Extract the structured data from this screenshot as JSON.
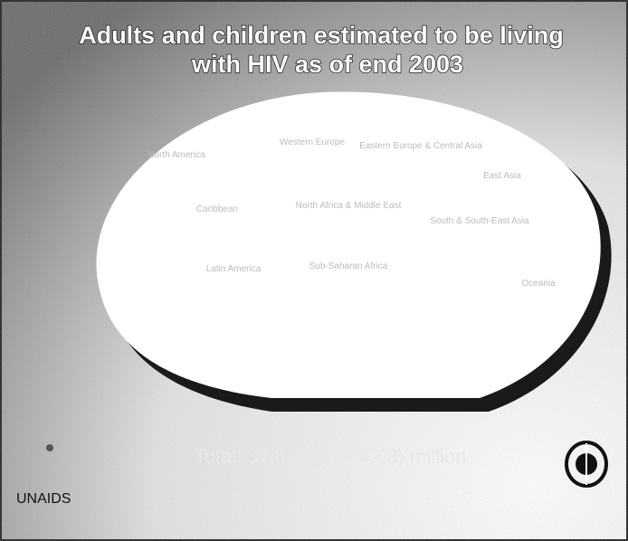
{
  "header": {
    "title_line1": "Adults and children estimated to be living",
    "title_line2": "with HIV as of end 2003"
  },
  "map": {
    "regions": [
      "North America",
      "Western Europe",
      "Eastern Europe & Central Asia",
      "East Asia",
      "Caribbean",
      "North Africa & Middle East",
      "South & South-East Asia",
      "Latin America",
      "Sub-Saharan Africa",
      "Oceania"
    ]
  },
  "footer": {
    "total": "Total: 37.8 (34.6 – 42.3) million",
    "logo_left": "UNAIDS"
  }
}
